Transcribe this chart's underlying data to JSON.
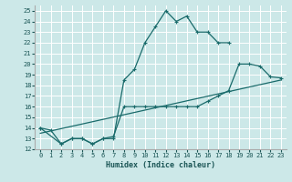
{
  "xlabel": "Humidex (Indice chaleur)",
  "xlim": [
    -0.5,
    23.5
  ],
  "ylim": [
    12,
    25.5
  ],
  "yticks": [
    12,
    13,
    14,
    15,
    16,
    17,
    18,
    19,
    20,
    21,
    22,
    23,
    24,
    25
  ],
  "xticks": [
    0,
    1,
    2,
    3,
    4,
    5,
    6,
    7,
    8,
    9,
    10,
    11,
    12,
    13,
    14,
    15,
    16,
    17,
    18,
    19,
    20,
    21,
    22,
    23
  ],
  "bg_color": "#cce8e8",
  "grid_color": "#ffffff",
  "line_color": "#1a6b6b",
  "line1_x": [
    0,
    1,
    2,
    3,
    4,
    5,
    6,
    7,
    8,
    9,
    10,
    11,
    12,
    13,
    14,
    15,
    16,
    17,
    18
  ],
  "line1_y": [
    14,
    13.8,
    12.5,
    13,
    13,
    12.5,
    13,
    13,
    18.5,
    19.5,
    22,
    23.5,
    25,
    24,
    24.5,
    23,
    23,
    22,
    22
  ],
  "line2_x": [
    0,
    2,
    3,
    4,
    5,
    6,
    7,
    8,
    9,
    10,
    11,
    12,
    13,
    14,
    15,
    16,
    17,
    18,
    19,
    20,
    21,
    22,
    23
  ],
  "line2_y": [
    14,
    12.5,
    13,
    13,
    12.5,
    13,
    13.2,
    16,
    16,
    16,
    16,
    16,
    16,
    16,
    16,
    16.5,
    17,
    17.5,
    20,
    20,
    19.8,
    18.8,
    18.7
  ],
  "line3_x": [
    0,
    23
  ],
  "line3_y": [
    13.5,
    18.5
  ]
}
